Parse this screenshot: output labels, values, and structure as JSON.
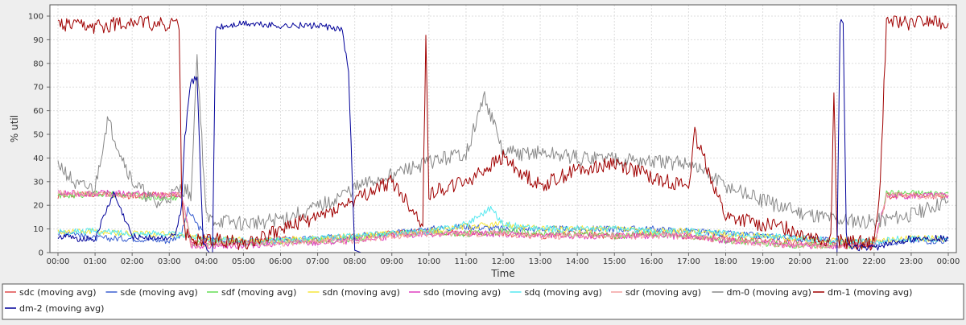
{
  "chart_data": {
    "type": "line",
    "title": "",
    "xlabel": "Time",
    "ylabel": "% util",
    "xlim": [
      0,
      1440
    ],
    "ylim": [
      0,
      100
    ],
    "grid": true,
    "legend_placement": "bottom",
    "y_ticks": [
      0,
      10,
      20,
      30,
      40,
      50,
      60,
      70,
      80,
      90,
      100
    ],
    "x_ticks": [
      {
        "t": 0,
        "label": "00:00"
      },
      {
        "t": 60,
        "label": "01:00"
      },
      {
        "t": 120,
        "label": "02:00"
      },
      {
        "t": 180,
        "label": "03:00"
      },
      {
        "t": 240,
        "label": "04:00"
      },
      {
        "t": 300,
        "label": "05:00"
      },
      {
        "t": 360,
        "label": "06:00"
      },
      {
        "t": 420,
        "label": "07:00"
      },
      {
        "t": 480,
        "label": "08:00"
      },
      {
        "t": 540,
        "label": "09:00"
      },
      {
        "t": 600,
        "label": "10:00"
      },
      {
        "t": 660,
        "label": "11:00"
      },
      {
        "t": 720,
        "label": "12:00"
      },
      {
        "t": 780,
        "label": "13:00"
      },
      {
        "t": 840,
        "label": "14:00"
      },
      {
        "t": 900,
        "label": "15:00"
      },
      {
        "t": 960,
        "label": "16:00"
      },
      {
        "t": 1020,
        "label": "17:00"
      },
      {
        "t": 1080,
        "label": "18:00"
      },
      {
        "t": 1140,
        "label": "19:00"
      },
      {
        "t": 1200,
        "label": "20:00"
      },
      {
        "t": 1260,
        "label": "21:00"
      },
      {
        "t": 1320,
        "label": "22:00"
      },
      {
        "t": 1380,
        "label": "23:00"
      },
      {
        "t": 1440,
        "label": "00:00"
      }
    ],
    "series": [
      {
        "name": "sdc (moving avg)",
        "color": "#e04b4b",
        "x": [
          0,
          60,
          120,
          180,
          200,
          215,
          240,
          300,
          360,
          420,
          480,
          540,
          600,
          660,
          720,
          780,
          840,
          900,
          960,
          1020,
          1080,
          1140,
          1200,
          1260,
          1290,
          1320,
          1340,
          1380,
          1440
        ],
        "y": [
          24,
          25,
          24,
          25,
          24,
          4,
          5,
          4,
          6,
          5,
          7,
          8,
          9,
          8,
          8,
          7,
          8,
          7,
          8,
          7,
          6,
          5,
          4,
          3,
          3,
          3,
          24,
          24,
          24
        ]
      },
      {
        "name": "sde (moving avg)",
        "color": "#3a5fd0",
        "x": [
          0,
          20,
          40,
          60,
          120,
          180,
          200,
          210,
          240,
          300,
          360,
          420,
          480,
          540,
          600,
          660,
          720,
          780,
          840,
          900,
          960,
          1020,
          1080,
          1140,
          1200,
          1260,
          1320,
          1380,
          1440
        ],
        "y": [
          8,
          9,
          7,
          6,
          6,
          5,
          8,
          18,
          6,
          4,
          5,
          6,
          7,
          8,
          10,
          11,
          10,
          10,
          10,
          10,
          10,
          9,
          8,
          7,
          6,
          5,
          4,
          5,
          5
        ]
      },
      {
        "name": "sdf (moving avg)",
        "color": "#66dd55",
        "x": [
          0,
          60,
          120,
          180,
          200,
          215,
          240,
          300,
          360,
          420,
          480,
          540,
          600,
          660,
          720,
          780,
          840,
          900,
          960,
          1020,
          1080,
          1140,
          1200,
          1260,
          1320,
          1340,
          1380,
          1440
        ],
        "y": [
          24,
          25,
          24,
          23,
          24,
          4,
          4,
          4,
          5,
          5,
          6,
          8,
          8,
          8,
          9,
          8,
          8,
          7,
          8,
          7,
          5,
          4,
          3,
          3,
          3,
          25,
          25,
          25
        ]
      },
      {
        "name": "sdn (moving avg)",
        "color": "#f5e63a",
        "x": [
          0,
          60,
          120,
          180,
          240,
          300,
          360,
          420,
          480,
          540,
          600,
          660,
          720,
          780,
          840,
          900,
          960,
          1020,
          1080,
          1140,
          1200,
          1260,
          1320,
          1380,
          1440
        ],
        "y": [
          9,
          9,
          8,
          8,
          6,
          5,
          5,
          6,
          7,
          8,
          9,
          11,
          12,
          10,
          10,
          10,
          9,
          9,
          8,
          7,
          6,
          5,
          5,
          6,
          6
        ]
      },
      {
        "name": "sdo (moving avg)",
        "color": "#e040c0",
        "x": [
          0,
          60,
          120,
          180,
          200,
          215,
          240,
          300,
          360,
          420,
          480,
          540,
          600,
          660,
          720,
          780,
          840,
          900,
          960,
          1020,
          1080,
          1140,
          1200,
          1260,
          1320,
          1340,
          1380,
          1440
        ],
        "y": [
          25,
          25,
          25,
          24,
          25,
          3,
          3,
          3,
          4,
          4,
          5,
          7,
          8,
          8,
          8,
          7,
          7,
          7,
          7,
          7,
          5,
          4,
          3,
          3,
          3,
          24,
          24,
          24
        ]
      },
      {
        "name": "sdq (moving avg)",
        "color": "#55e8f0",
        "x": [
          0,
          60,
          120,
          180,
          240,
          300,
          360,
          420,
          480,
          540,
          600,
          660,
          700,
          720,
          780,
          840,
          900,
          960,
          1020,
          1080,
          1140,
          1200,
          1260,
          1320,
          1380,
          1440
        ],
        "y": [
          9,
          9,
          8,
          8,
          6,
          5,
          5,
          6,
          7,
          8,
          9,
          12,
          19,
          12,
          10,
          10,
          10,
          9,
          9,
          8,
          7,
          6,
          5,
          5,
          6,
          6
        ]
      },
      {
        "name": "sdr (moving avg)",
        "color": "#f2a0a0",
        "x": [
          0,
          60,
          120,
          180,
          200,
          215,
          240,
          300,
          360,
          420,
          480,
          540,
          600,
          660,
          720,
          780,
          840,
          900,
          960,
          1020,
          1080,
          1140,
          1200,
          1260,
          1320,
          1340,
          1380,
          1440
        ],
        "y": [
          25,
          25,
          24,
          24,
          24,
          3,
          3,
          4,
          4,
          5,
          5,
          7,
          8,
          8,
          8,
          7,
          7,
          7,
          7,
          7,
          5,
          4,
          3,
          3,
          3,
          24,
          24,
          24
        ]
      },
      {
        "name": "dm-0 (moving avg)",
        "color": "#888888",
        "x": [
          0,
          30,
          60,
          80,
          120,
          160,
          200,
          215,
          225,
          240,
          300,
          360,
          420,
          480,
          540,
          600,
          660,
          690,
          720,
          780,
          840,
          900,
          960,
          1020,
          1080,
          1140,
          1200,
          1260,
          1320,
          1380,
          1440
        ],
        "y": [
          38,
          28,
          27,
          56,
          30,
          20,
          27,
          25,
          83,
          14,
          12,
          14,
          19,
          27,
          33,
          38,
          42,
          66,
          42,
          42,
          40,
          40,
          38,
          38,
          28,
          22,
          17,
          14,
          13,
          16,
          22
        ]
      },
      {
        "name": "dm-1 (moving avg)",
        "color": "#a00000",
        "x": [
          0,
          60,
          120,
          180,
          196,
          200,
          205,
          215,
          240,
          300,
          360,
          420,
          480,
          540,
          590,
          595,
          600,
          660,
          720,
          780,
          840,
          900,
          960,
          1020,
          1030,
          1080,
          1140,
          1200,
          1250,
          1255,
          1260,
          1320,
          1330,
          1340,
          1380,
          1420,
          1440
        ],
        "y": [
          96,
          95,
          98,
          96,
          97,
          25,
          8,
          5,
          6,
          4,
          10,
          15,
          22,
          30,
          12,
          90,
          25,
          30,
          40,
          28,
          35,
          38,
          32,
          28,
          50,
          15,
          12,
          9,
          5,
          69,
          5,
          4,
          30,
          98,
          97,
          98,
          97
        ]
      },
      {
        "name": "dm-2 (moving avg)",
        "color": "#000099",
        "x": [
          0,
          30,
          60,
          90,
          120,
          170,
          190,
          200,
          205,
          215,
          225,
          235,
          245,
          250,
          255,
          300,
          360,
          420,
          460,
          470,
          480,
          490,
          540,
          600,
          660,
          720,
          780,
          840,
          900,
          960,
          1020,
          1080,
          1140,
          1200,
          1260,
          1265,
          1270,
          1275,
          1280,
          1320,
          1380,
          1440
        ],
        "y": [
          7,
          6,
          6,
          25,
          7,
          6,
          7,
          20,
          48,
          72,
          74,
          3,
          0,
          0,
          95,
          97,
          96,
          96,
          94,
          76,
          1,
          0,
          0,
          0,
          0,
          0,
          0,
          0,
          0,
          0,
          0,
          0,
          0,
          0,
          0,
          98,
          98,
          7,
          2,
          2,
          6,
          6
        ]
      }
    ]
  }
}
